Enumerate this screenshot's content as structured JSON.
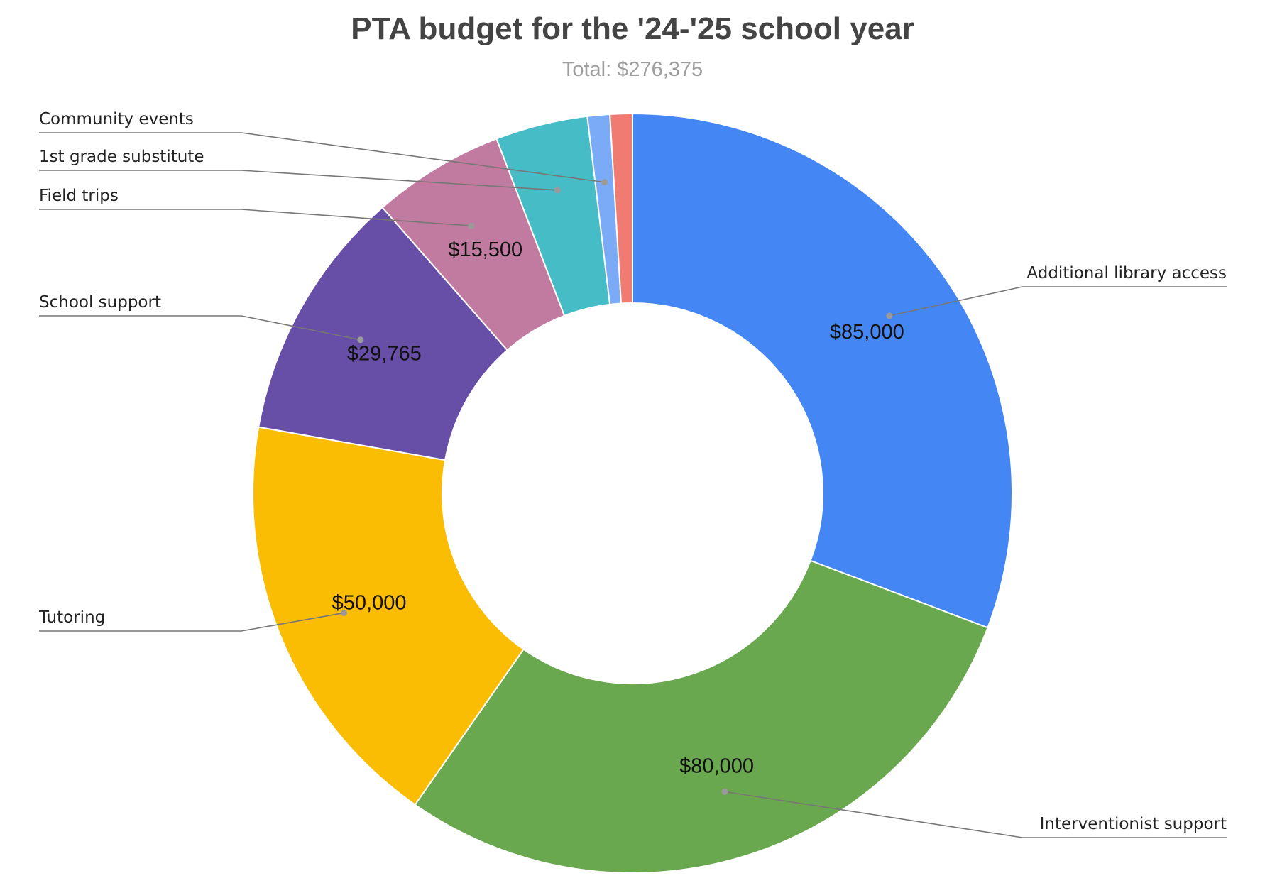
{
  "chart_data": {
    "type": "pie",
    "donut": true,
    "title": "PTA budget for the '24-'25 school year",
    "subtitle": "Total: $276,375",
    "slices": [
      {
        "name": "Additional library access",
        "value": 85000,
        "label": "$85,000",
        "color": "#4486f4"
      },
      {
        "name": "Interventionist support",
        "value": 80000,
        "label": "$80,000",
        "color": "#6aa84f"
      },
      {
        "name": "Tutoring",
        "value": 50000,
        "label": "$50,000",
        "color": "#fbbc04"
      },
      {
        "name": "School support",
        "value": 29765,
        "label": "$29,765",
        "color": "#674ea7"
      },
      {
        "name": "Field trips",
        "value": 15500,
        "label": "$15,500",
        "color": "#c27ba0"
      },
      {
        "name": "1st grade substitute",
        "value": 10860,
        "label": "",
        "color": "#46bdc6"
      },
      {
        "name": "Community events",
        "value": 2625,
        "label": "",
        "color": "#7baaf7"
      },
      {
        "name": "",
        "value": 2625,
        "label": "",
        "color": "#f07b72"
      }
    ]
  }
}
